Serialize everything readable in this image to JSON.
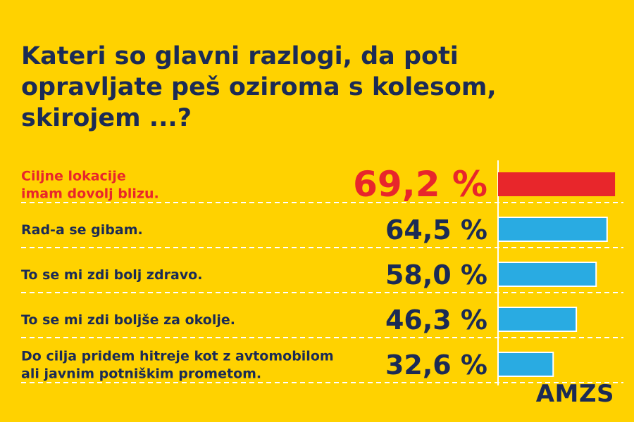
{
  "title": "Kateri so glavni razlogi, da poti opravljate peš oziroma s kolesom, skirojem ...?",
  "brand": "AMZS",
  "chart_data": {
    "type": "bar",
    "orientation": "horizontal",
    "categories": [
      [
        "Ciljne lokacije",
        "imam dovolj blizu."
      ],
      [
        "Rad-a se gibam."
      ],
      [
        "To se mi zdi bolj zdravo."
      ],
      [
        "To se mi zdi boljše za okolje."
      ],
      [
        "Do cilja pridem hitreje kot z avtomobilom",
        "ali javnim potniškim prometom."
      ]
    ],
    "values": [
      69.2,
      64.5,
      58.0,
      46.3,
      32.6
    ],
    "value_labels": [
      "69,2 %",
      "64,5 %",
      "58,0 %",
      "46,3 %",
      "32,6 %"
    ],
    "highlight_index": 0,
    "colors": {
      "background": "#FFD200",
      "text": "#1B2B55",
      "highlight": "#E8262B",
      "bar": "#29ABE2",
      "bar_border": "#FFFFFF",
      "separator": "#FFFFFF"
    },
    "grid": false,
    "legend": "none"
  }
}
